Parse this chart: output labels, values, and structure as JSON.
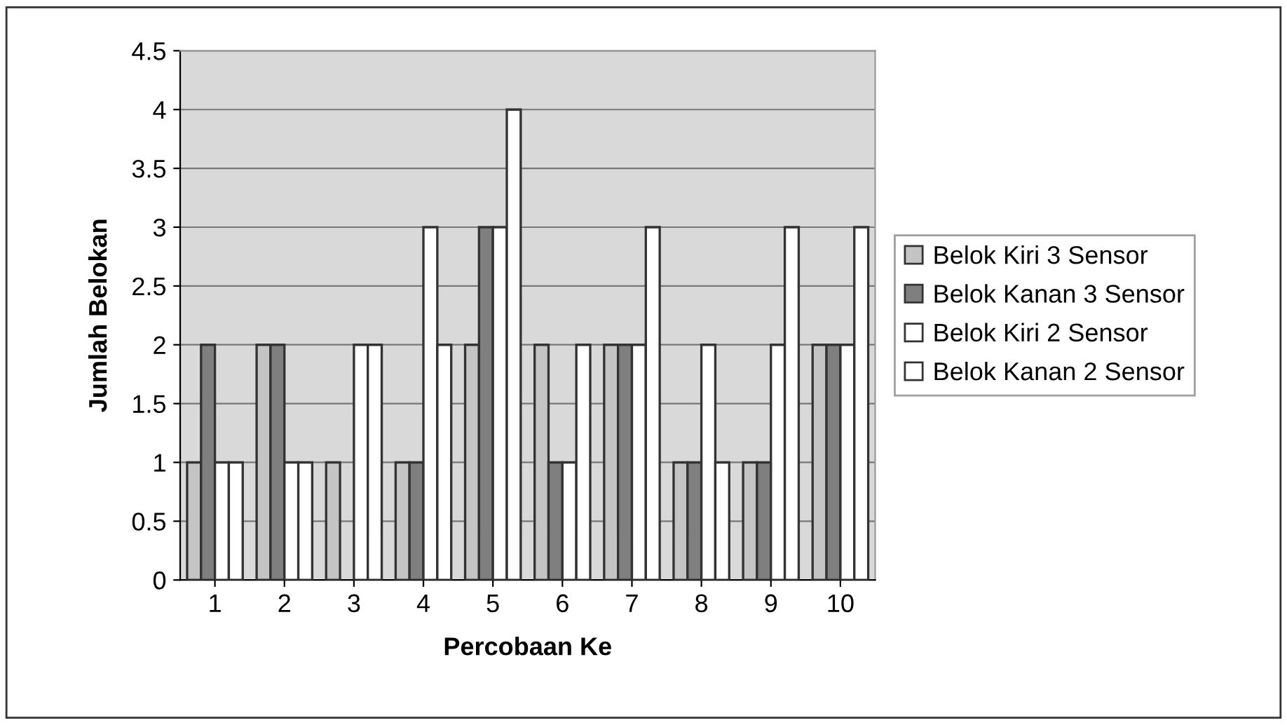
{
  "chart_data": {
    "type": "bar",
    "xlabel": "Percobaan Ke",
    "ylabel": "Jumlah Belokan",
    "categories": [
      "1",
      "2",
      "3",
      "4",
      "5",
      "6",
      "7",
      "8",
      "9",
      "10"
    ],
    "series": [
      {
        "name": "Belok Kiri 3 Sensor",
        "color": "#c4c4c4",
        "values": [
          1,
          2,
          1,
          1,
          2,
          2,
          2,
          1,
          1,
          2
        ]
      },
      {
        "name": "Belok Kanan 3 Sensor",
        "color": "#7f7f7f",
        "values": [
          2,
          2,
          0,
          1,
          3,
          1,
          2,
          1,
          1,
          2
        ]
      },
      {
        "name": "Belok Kiri 2 Sensor",
        "color": "#ffffff",
        "values": [
          1,
          1,
          2,
          3,
          3,
          1,
          2,
          2,
          2,
          2
        ]
      },
      {
        "name": "Belok Kanan 2 Sensor",
        "color": "#ffffff",
        "values": [
          1,
          1,
          2,
          2,
          4,
          2,
          3,
          1,
          3,
          3
        ]
      }
    ],
    "ylim": [
      0,
      4.5
    ],
    "yticks": [
      0,
      0.5,
      1,
      1.5,
      2,
      2.5,
      3,
      3.5,
      4,
      4.5
    ],
    "grid": "y",
    "legend": "right"
  }
}
